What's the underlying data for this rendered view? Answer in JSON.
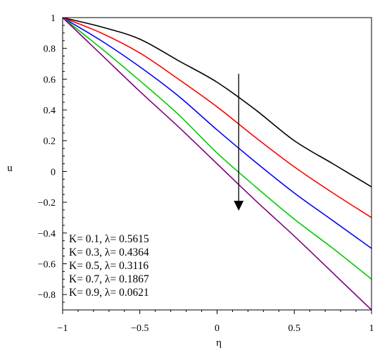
{
  "chart_data": {
    "type": "line",
    "title": "",
    "xlabel": "η",
    "ylabel": "u",
    "xlim": [
      -1,
      1
    ],
    "ylim": [
      -0.9,
      1
    ],
    "xticks": [
      -1,
      -0.5,
      0,
      0.5,
      1
    ],
    "xtick_labels": [
      "−1",
      "−0.5",
      "0",
      "0.5",
      "1"
    ],
    "yticks": [
      1,
      0.8,
      0.6,
      0.4,
      0.2,
      0,
      -0.2,
      -0.4,
      -0.6,
      -0.8
    ],
    "ytick_labels": [
      "1",
      "0.8",
      "0.6",
      "0.4",
      "0.2",
      "0",
      "−0.2",
      "−0.4",
      "−0.6",
      "−0.8"
    ],
    "grid": false,
    "legend_position": "bottom-left",
    "annotation": "arrow pointing down indicating increasing K",
    "x": [
      -1,
      -0.75,
      -0.5,
      -0.25,
      0,
      0.25,
      0.5,
      0.75,
      1
    ],
    "series": [
      {
        "name": "K= 0.1, λ= 0.5615",
        "color": "#000000",
        "values": [
          1,
          0.94,
          0.86,
          0.72,
          0.58,
          0.4,
          0.2,
          0.05,
          -0.1
        ]
      },
      {
        "name": "K= 0.3, λ= 0.4364",
        "color": "#ff0000",
        "values": [
          1,
          0.9,
          0.77,
          0.6,
          0.42,
          0.22,
          0.03,
          -0.14,
          -0.3
        ]
      },
      {
        "name": "K= 0.5, λ= 0.3116",
        "color": "#0000ff",
        "values": [
          1,
          0.85,
          0.68,
          0.49,
          0.27,
          0.06,
          -0.14,
          -0.32,
          -0.5
        ]
      },
      {
        "name": "K= 0.7, λ= 0.1867",
        "color": "#00cc00",
        "values": [
          1,
          0.8,
          0.59,
          0.37,
          0.12,
          -0.1,
          -0.31,
          -0.5,
          -0.7
        ]
      },
      {
        "name": "K= 0.9, λ= 0.0621",
        "color": "#800080",
        "values": [
          1,
          0.76,
          0.52,
          0.29,
          0.05,
          -0.19,
          -0.42,
          -0.66,
          -0.9
        ]
      }
    ]
  }
}
